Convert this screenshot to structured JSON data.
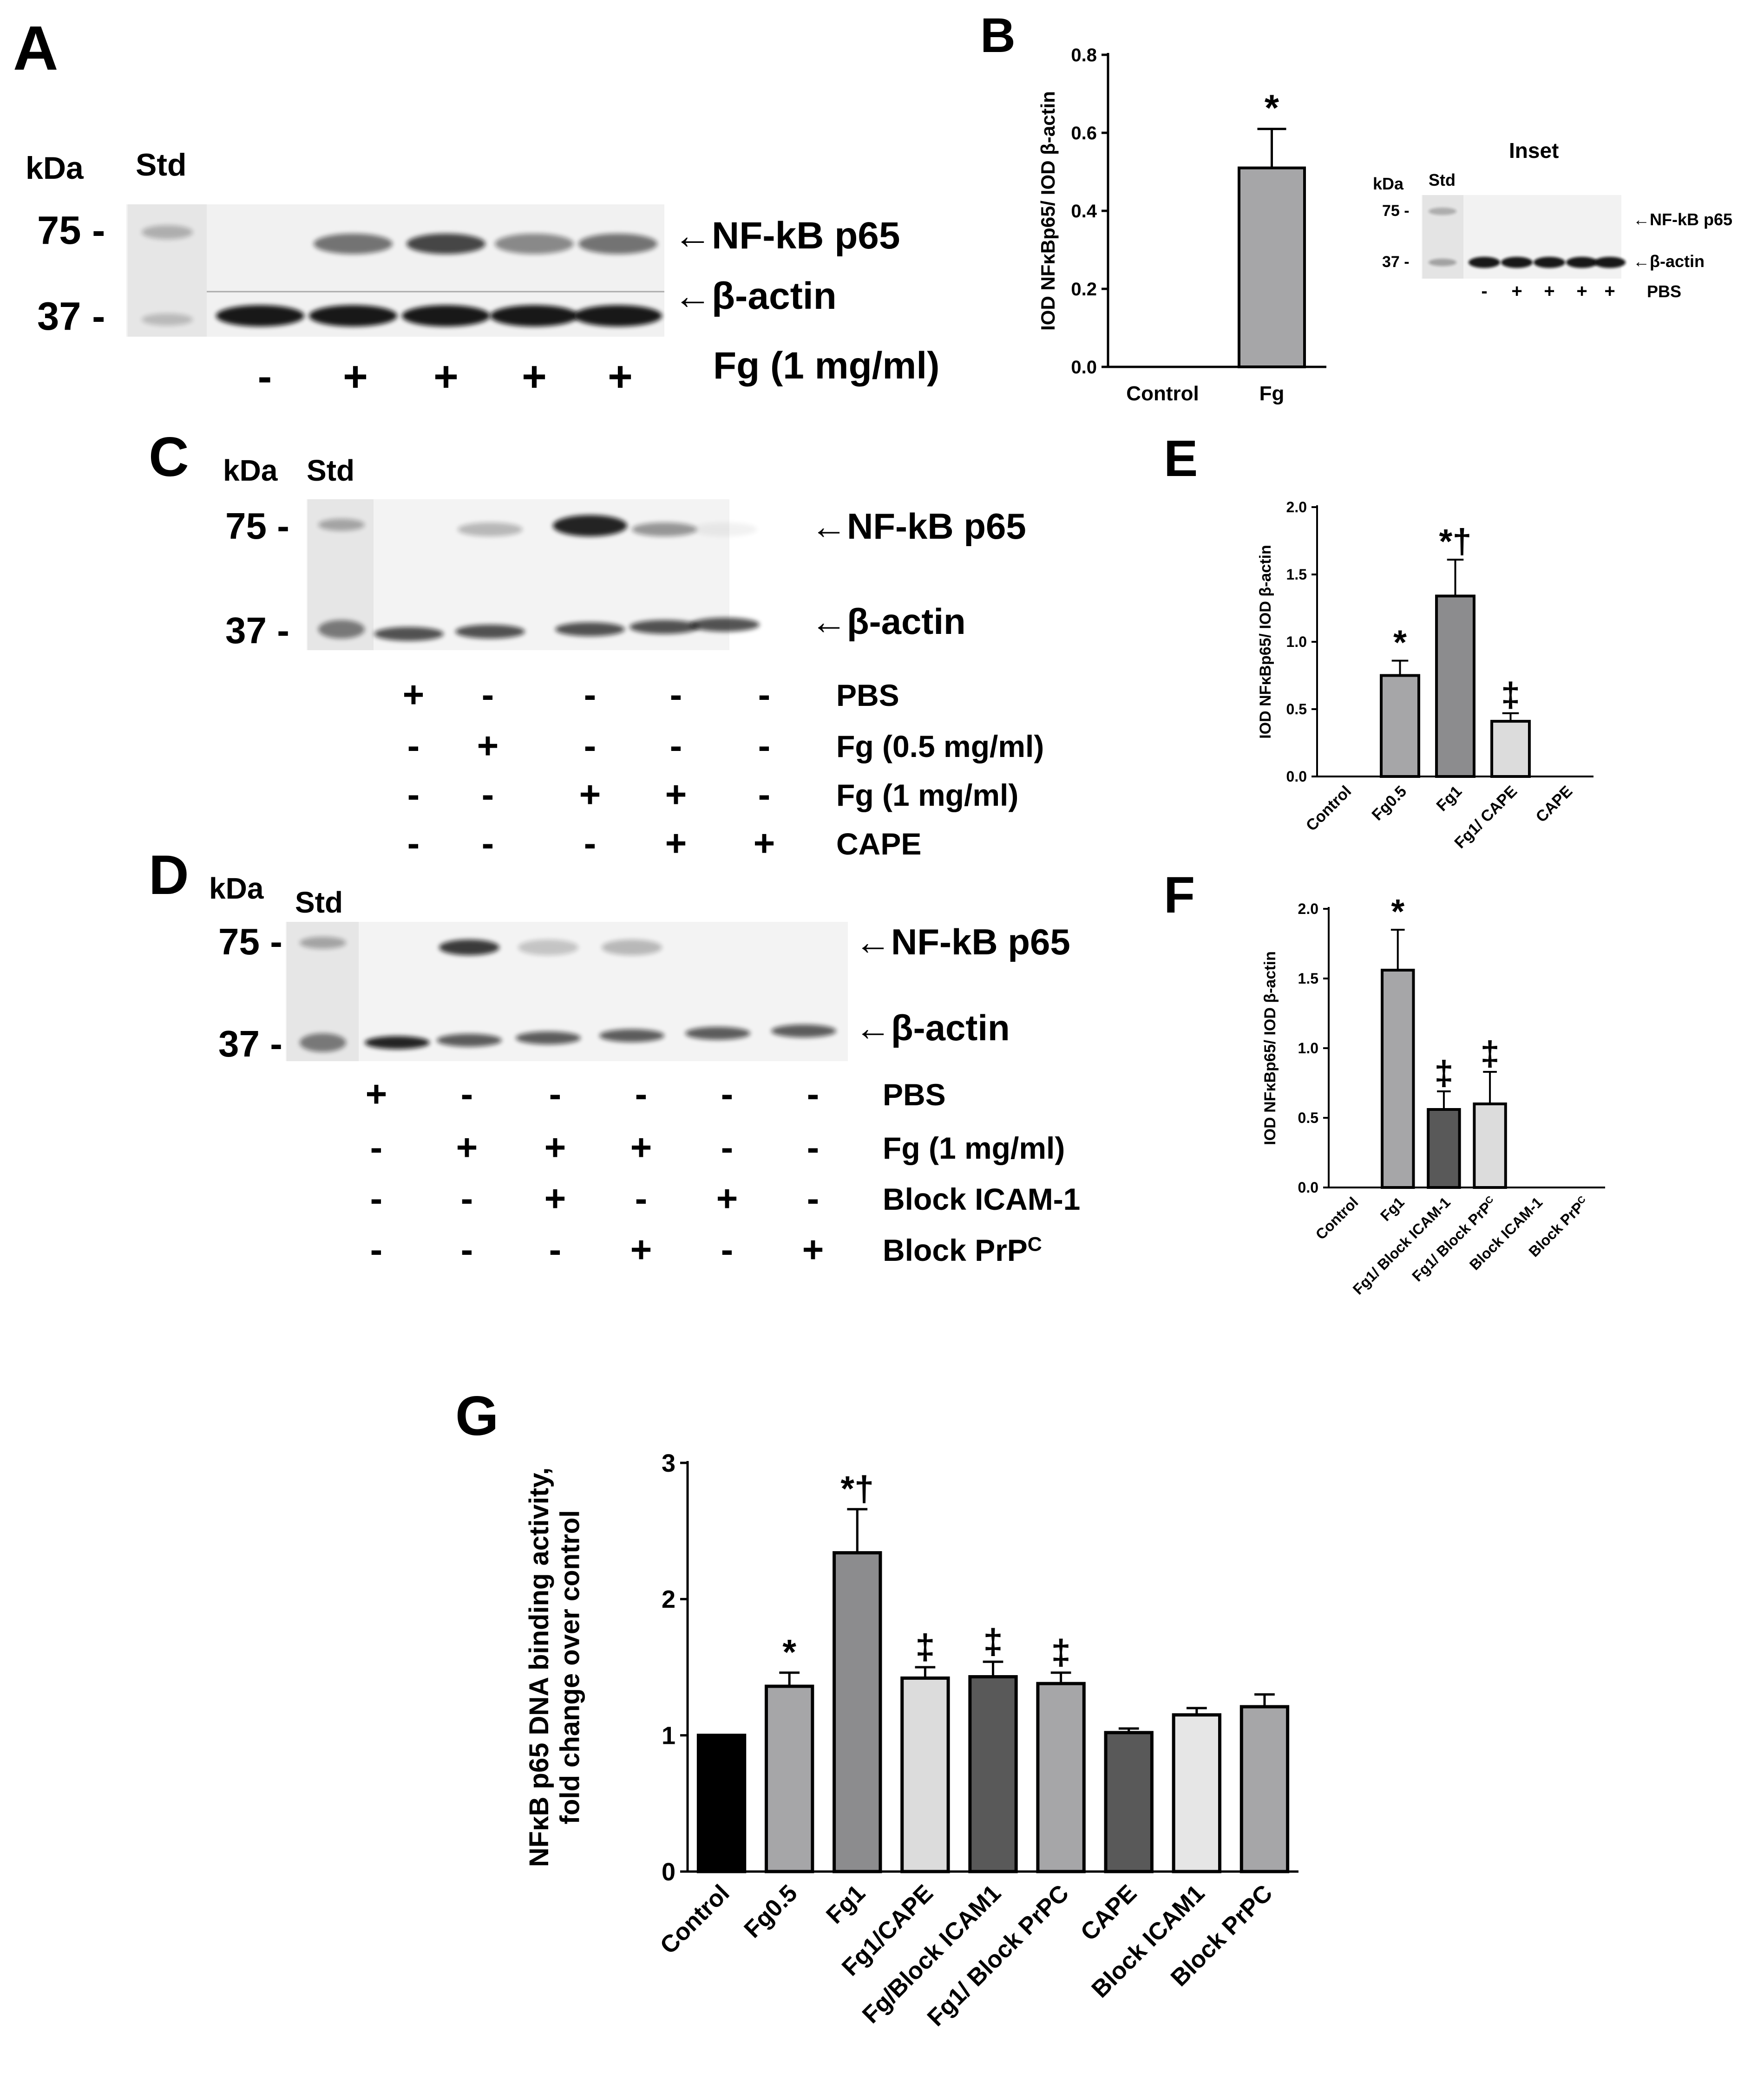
{
  "panel_letters": [
    "A",
    "B",
    "C",
    "D",
    "E",
    "F",
    "G"
  ],
  "colors": {
    "black": "#000000",
    "dark_gray": "#595959",
    "mid_gray": "#8c8c8e",
    "light_gray": "#dcdcdc",
    "gray": "#a6a6a8"
  },
  "panelA": {
    "kda": "kDa",
    "std": "Std",
    "markers": [
      "75 -",
      "37 -"
    ],
    "band_labels": [
      "←NF-kB p65",
      "←β-actin"
    ],
    "treatment_label": "Fg (1 mg/ml)",
    "signs": [
      "-",
      "+",
      "+",
      "+",
      "+"
    ],
    "p65_intensity": [
      0,
      0.55,
      0.75,
      0.45,
      0.55
    ]
  },
  "panelB_inset": {
    "title": "Inset",
    "kda": "kDa",
    "std": "Std",
    "markers": [
      "75 -",
      "37 -"
    ],
    "band_labels": [
      "←NF-kB p65",
      "←β-actin"
    ],
    "signs": [
      "-",
      "+",
      "+",
      "+",
      "+"
    ],
    "treatment_label": "PBS"
  },
  "panelC": {
    "kda": "kDa",
    "std": "Std",
    "markers": [
      "75 -",
      "37 -"
    ],
    "band_labels": [
      "←NF-kB p65",
      "←β-actin"
    ],
    "p65_intensity": [
      0,
      0.25,
      0.9,
      0.4,
      0.05
    ],
    "rows": [
      {
        "label": "PBS",
        "signs": [
          "+",
          "-",
          "-",
          "-",
          "-"
        ]
      },
      {
        "label": "Fg (0.5 mg/ml)",
        "signs": [
          "-",
          "+",
          "-",
          "-",
          "-"
        ]
      },
      {
        "label": "Fg (1 mg/ml)",
        "signs": [
          "-",
          "-",
          "+",
          "+",
          "-"
        ]
      },
      {
        "label": "CAPE",
        "signs": [
          "-",
          "-",
          "-",
          "+",
          "+"
        ]
      }
    ]
  },
  "panelD": {
    "kda": "kDa",
    "std": "Std",
    "markers": [
      "75 -",
      "37 -"
    ],
    "band_labels": [
      "←NF-kB p65",
      "←β-actin"
    ],
    "p65_intensity": [
      0,
      0.8,
      0.2,
      0.25,
      0,
      0
    ],
    "rows": [
      {
        "label": "PBS",
        "signs": [
          "+",
          "-",
          "-",
          "-",
          "-",
          "-"
        ]
      },
      {
        "label": "Fg (1 mg/ml)",
        "signs": [
          "-",
          "+",
          "+",
          "+",
          "-",
          "-"
        ]
      },
      {
        "label": "Block ICAM-1",
        "signs": [
          "-",
          "-",
          "+",
          "-",
          "+",
          "-"
        ]
      },
      {
        "label": "Block PrP",
        "sup": "C",
        "signs": [
          "-",
          "-",
          "-",
          "+",
          "-",
          "+"
        ]
      }
    ]
  },
  "chart_data": [
    {
      "panel": "B",
      "type": "bar",
      "categories": [
        "Control",
        "Fg"
      ],
      "values": [
        0,
        0.51
      ],
      "errors": [
        0,
        0.1
      ],
      "annotations": [
        "",
        "*"
      ],
      "ylabel": "IOD NFκBp65/ IOD β-actin",
      "ylim": [
        0,
        0.8
      ],
      "yticks": [
        "0.0",
        "0.2",
        "0.4",
        "0.6",
        "0.8"
      ],
      "bar_colors": [
        "#a6a6a8",
        "#a6a6a8"
      ]
    },
    {
      "panel": "E",
      "type": "bar",
      "categories": [
        "Control",
        "Fg0.5",
        "Fg1",
        "Fg1/ CAPE",
        "CAPE"
      ],
      "values": [
        0,
        0.75,
        1.34,
        0.41,
        0
      ],
      "errors": [
        0,
        0.11,
        0.27,
        0.06,
        0
      ],
      "annotations": [
        "",
        "*",
        "*†",
        "‡",
        ""
      ],
      "ylabel": "IOD NFκBp65/ IOD β-actin",
      "ylim": [
        0,
        2.0
      ],
      "yticks": [
        "0.0",
        "0.5",
        "1.0",
        "1.5",
        "2.0"
      ],
      "bar_colors": [
        "#a6a6a8",
        "#a6a6a8",
        "#8c8c8e",
        "#dcdcdc",
        "#a6a6a8"
      ]
    },
    {
      "panel": "F",
      "type": "bar",
      "categories": [
        "Control",
        "Fg1",
        "Fg1/ Block ICAM-1",
        "Fg1/ Block PrP",
        "Block ICAM-1",
        "Block PrP"
      ],
      "category_sups": [
        "",
        "",
        "",
        "C",
        "",
        "C"
      ],
      "values": [
        0,
        1.56,
        0.56,
        0.6,
        0,
        0
      ],
      "errors": [
        0,
        0.29,
        0.13,
        0.23,
        0,
        0
      ],
      "annotations": [
        "",
        "*",
        "‡",
        "‡",
        "",
        ""
      ],
      "ylabel": "IOD NFκBp65/ IOD β-actin",
      "ylim": [
        0,
        2.0
      ],
      "yticks": [
        "0.0",
        "0.5",
        "1.0",
        "1.5",
        "2.0"
      ],
      "bar_colors": [
        "#a6a6a8",
        "#a6a6a8",
        "#595959",
        "#dcdcdc",
        "#a6a6a8",
        "#a6a6a8"
      ]
    },
    {
      "panel": "G",
      "type": "bar",
      "categories": [
        "Control",
        "Fg0.5",
        "Fg1",
        "Fg1/CAPE",
        "Fg/Block ICAM1",
        "Fg1/ Block PrPC",
        "CAPE",
        "Block ICAM1",
        "Block PrPC"
      ],
      "values": [
        1.0,
        1.36,
        2.34,
        1.42,
        1.43,
        1.38,
        1.02,
        1.15,
        1.21
      ],
      "errors": [
        0,
        0.1,
        0.32,
        0.08,
        0.11,
        0.08,
        0.03,
        0.05,
        0.09
      ],
      "annotations": [
        "",
        "*",
        "*†",
        "‡",
        "‡",
        "‡",
        "",
        "",
        ""
      ],
      "ylabel": "NFκB p65 DNA binding activity, fold change over control",
      "ylabel_lines": [
        "NFκB p65 DNA binding activity,",
        "fold change over control"
      ],
      "ylim": [
        0,
        3
      ],
      "yticks": [
        "0",
        "1",
        "2",
        "3"
      ],
      "bar_colors": [
        "#000000",
        "#a6a6a8",
        "#8c8c8e",
        "#dcdcdc",
        "#595959",
        "#a6a6a8",
        "#595959",
        "#e6e6e6",
        "#a6a6a8"
      ]
    }
  ]
}
